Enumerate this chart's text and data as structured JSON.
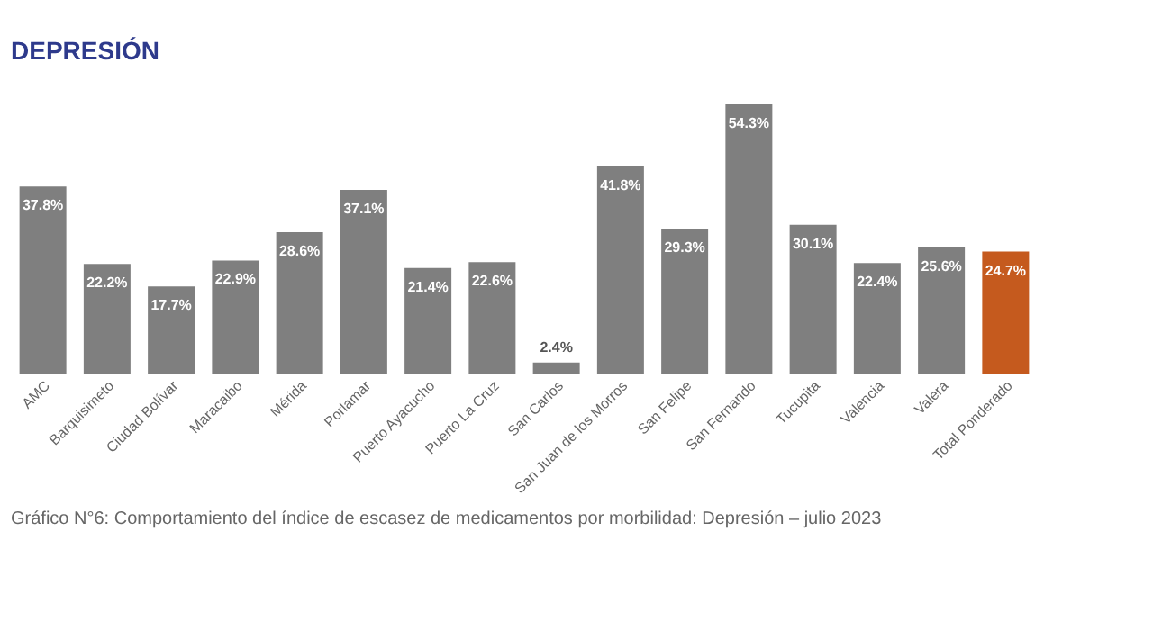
{
  "chart_data": {
    "type": "bar",
    "title": "DEPRESIÓN",
    "categories": [
      "AMC",
      "Barquisimeto",
      "Ciudad Bolívar",
      "Maracaibo",
      "Mérida",
      "Porlamar",
      "Puerto Ayacucho",
      "Puerto La Cruz",
      "San Carlos",
      "San Juan de los Morros",
      "San Felipe",
      "San Fernando",
      "Tucupita",
      "Valencia",
      "Valera",
      "Total Ponderado"
    ],
    "values": [
      37.8,
      22.2,
      17.7,
      22.9,
      28.6,
      37.1,
      21.4,
      22.6,
      2.4,
      41.8,
      29.3,
      54.3,
      30.1,
      22.4,
      25.6,
      24.7
    ],
    "value_labels": [
      "37.8%",
      "22.2%",
      "17.7%",
      "22.9%",
      "28.6%",
      "37.1%",
      "21.4%",
      "22.6%",
      "2.4%",
      "41.8%",
      "29.3%",
      "54.3%",
      "30.1%",
      "22.4%",
      "25.6%",
      "24.7%"
    ],
    "colors": [
      "#7f7f7f",
      "#7f7f7f",
      "#7f7f7f",
      "#7f7f7f",
      "#7f7f7f",
      "#7f7f7f",
      "#7f7f7f",
      "#7f7f7f",
      "#7f7f7f",
      "#7f7f7f",
      "#7f7f7f",
      "#7f7f7f",
      "#7f7f7f",
      "#7f7f7f",
      "#7f7f7f",
      "#c55a1e"
    ],
    "annotations": [
      "Gráfico N°6: Comportamiento del índice de escasez de medicamentos por morbilidad: Depresión – julio 2023"
    ],
    "grid": false
  }
}
